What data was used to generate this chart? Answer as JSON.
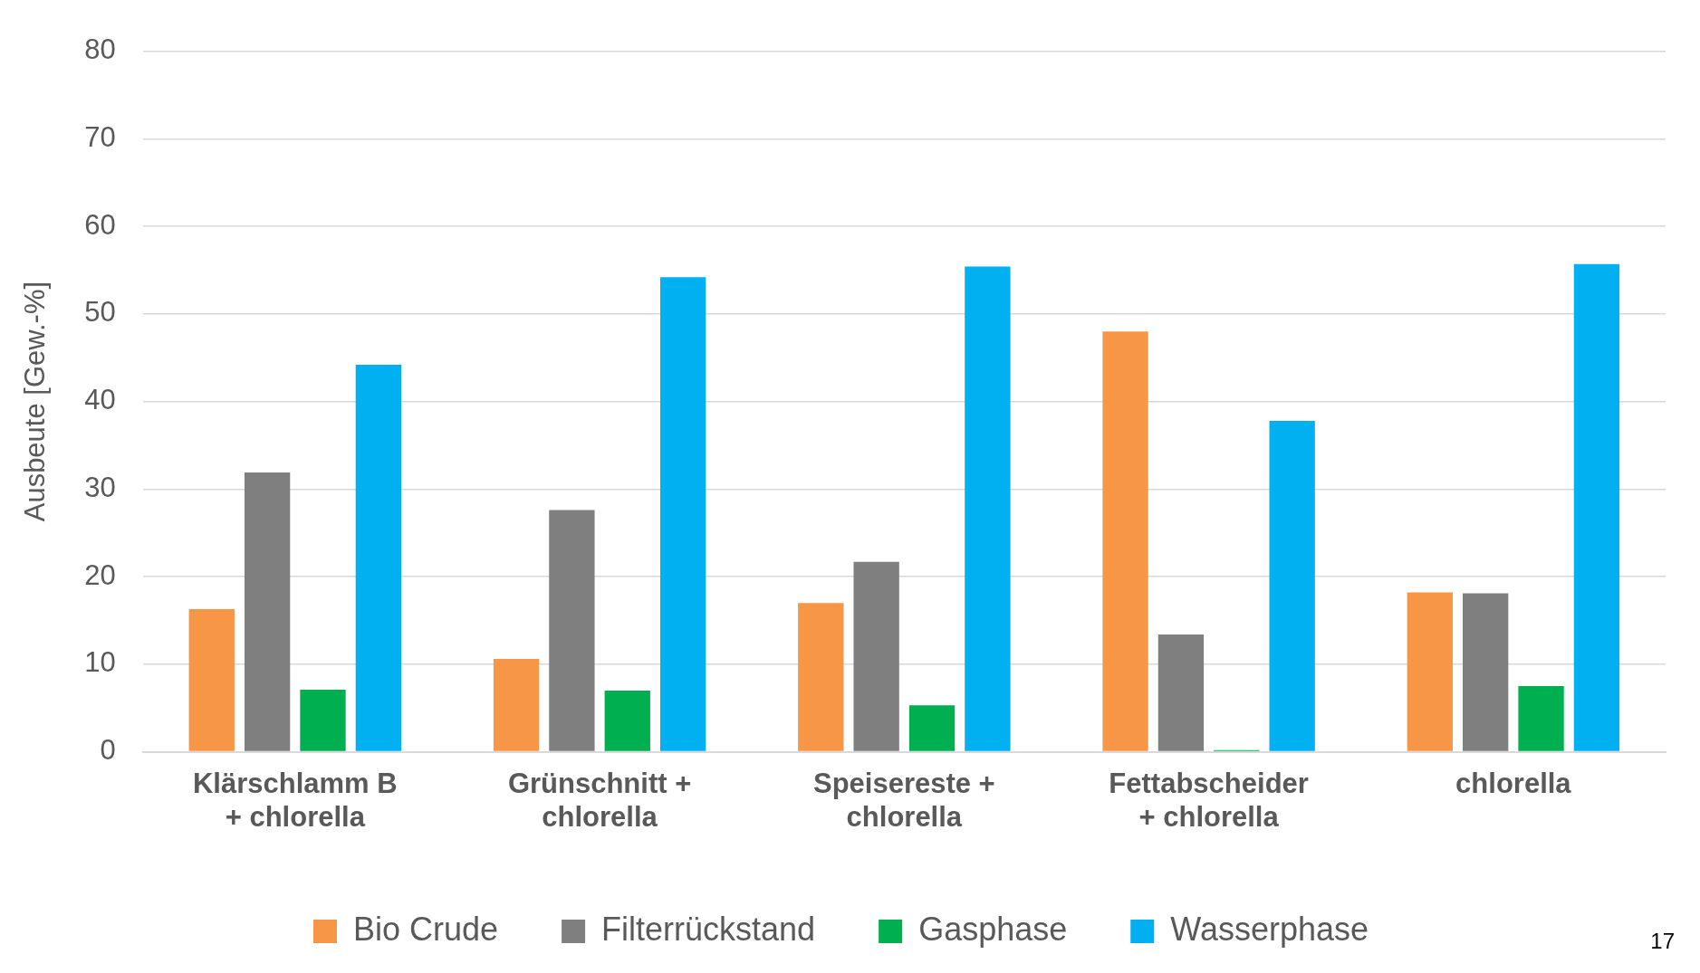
{
  "chart_data": {
    "type": "bar",
    "ylabel": "Ausbeute [Gew.-%]",
    "categories": [
      "Klärschlamm B\n+ chlorella",
      "Grünschnitt +\nchlorella",
      "Speisereste +\nchlorella",
      "Fettabscheider\n+ chlorella",
      "chlorella"
    ],
    "series": [
      {
        "name": "Bio Crude",
        "color": "#f79646",
        "values": [
          16.3,
          10.6,
          17.0,
          48.0,
          18.2
        ]
      },
      {
        "name": "Filterrückstand",
        "color": "#7f7f7f",
        "values": [
          31.9,
          27.6,
          21.7,
          13.4,
          18.1
        ]
      },
      {
        "name": "Gasphase",
        "color": "#00b050",
        "values": [
          7.1,
          7.0,
          5.3,
          0.2,
          7.5
        ]
      },
      {
        "name": "Wasserphase",
        "color": "#00b0f0",
        "values": [
          44.2,
          54.2,
          55.4,
          37.8,
          55.7
        ]
      }
    ],
    "ylim": [
      0,
      80
    ],
    "yticks": [
      0,
      10,
      20,
      30,
      40,
      50,
      60,
      70,
      80
    ],
    "grid": "y",
    "legend": "bottom",
    "annotations": [
      "17"
    ]
  }
}
